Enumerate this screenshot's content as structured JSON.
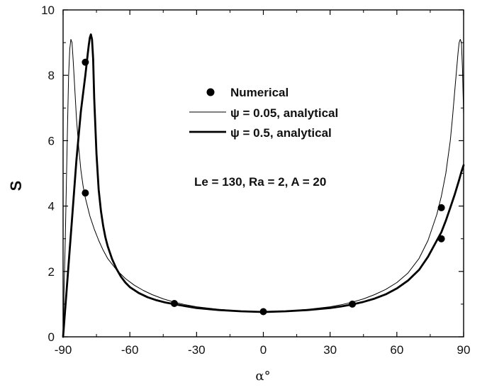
{
  "chart_data": {
    "type": "line",
    "xlabel": "α°",
    "ylabel": "S",
    "xlim": [
      -90,
      90
    ],
    "ylim": [
      0,
      10
    ],
    "xticks": [
      -90,
      -60,
      -30,
      0,
      30,
      60,
      90
    ],
    "yticks": [
      0,
      2,
      4,
      6,
      8,
      10
    ],
    "grid": false,
    "legend_placement": "upper-center",
    "series": [
      {
        "name": "Numerical",
        "style": "markers",
        "color": "#000000",
        "x": [
          -80,
          -80,
          -40,
          0,
          40,
          80,
          80
        ],
        "y": [
          8.4,
          4.4,
          1.02,
          0.77,
          1.0,
          3.95,
          3.0
        ]
      },
      {
        "name": "ψ = 0.05, analytical",
        "style": "thin-line",
        "color": "#000000",
        "x": [
          -90,
          -89,
          -88,
          -87.5,
          -87,
          -86.5,
          -86,
          -85.5,
          -85,
          -84,
          -83,
          -82,
          -81,
          -80,
          -78,
          -76,
          -74,
          -72,
          -70,
          -66,
          -62,
          -58,
          -54,
          -50,
          -45,
          -40,
          -35,
          -30,
          -20,
          -10,
          0,
          10,
          20,
          30,
          35,
          40,
          45,
          50,
          55,
          60,
          65,
          70,
          74,
          78,
          80,
          82,
          84,
          85,
          86,
          87,
          87.5,
          88,
          88.5,
          89,
          89.5,
          90
        ],
        "y": [
          0.1,
          3.0,
          6.5,
          8.0,
          8.8,
          9.1,
          9.0,
          8.5,
          7.9,
          6.7,
          5.8,
          5.1,
          4.6,
          4.25,
          3.7,
          3.3,
          2.95,
          2.65,
          2.4,
          2.05,
          1.78,
          1.58,
          1.42,
          1.29,
          1.16,
          1.06,
          0.98,
          0.92,
          0.84,
          0.79,
          0.77,
          0.79,
          0.84,
          0.92,
          0.98,
          1.06,
          1.16,
          1.29,
          1.45,
          1.66,
          1.95,
          2.4,
          2.95,
          3.75,
          4.3,
          5.0,
          6.0,
          6.7,
          7.5,
          8.3,
          8.7,
          9.0,
          9.1,
          9.0,
          8.2,
          6.8
        ]
      },
      {
        "name": "ψ = 0.5, analytical",
        "style": "thick-line",
        "color": "#000000",
        "x": [
          -90,
          -88,
          -86,
          -84,
          -82,
          -80,
          -79,
          -78.5,
          -78,
          -77.5,
          -77,
          -76.5,
          -76,
          -75,
          -74,
          -73,
          -72,
          -71,
          -70,
          -68,
          -66,
          -64,
          -62,
          -60,
          -56,
          -52,
          -48,
          -44,
          -40,
          -35,
          -30,
          -20,
          -10,
          0,
          10,
          20,
          30,
          35,
          40,
          45,
          50,
          55,
          60,
          65,
          70,
          74,
          78,
          80,
          82,
          84,
          86,
          88,
          89,
          90
        ],
        "y": [
          0.0,
          1.8,
          3.6,
          5.4,
          6.9,
          8.0,
          8.6,
          8.9,
          9.15,
          9.25,
          9.1,
          8.5,
          7.3,
          5.6,
          4.5,
          3.85,
          3.4,
          3.05,
          2.78,
          2.38,
          2.08,
          1.84,
          1.66,
          1.52,
          1.34,
          1.21,
          1.12,
          1.05,
          1.0,
          0.94,
          0.88,
          0.82,
          0.78,
          0.76,
          0.78,
          0.82,
          0.88,
          0.93,
          0.99,
          1.07,
          1.17,
          1.3,
          1.48,
          1.72,
          2.05,
          2.45,
          2.95,
          3.2,
          3.55,
          3.95,
          4.35,
          4.8,
          5.05,
          5.25
        ]
      }
    ],
    "annotations": [
      {
        "text": "Le = 130, Ra = 2, A = 20"
      }
    ]
  }
}
